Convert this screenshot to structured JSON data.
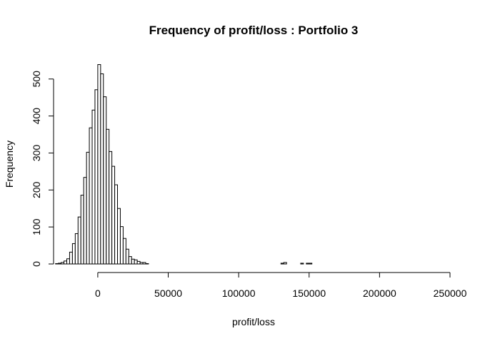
{
  "chart_data": {
    "type": "histogram",
    "title": "Frequency of profit/loss : Portfolio 3",
    "xlabel": "profit/loss",
    "ylabel": "Frequency",
    "bin_width": 2000,
    "xlim": [
      -40000,
      250000
    ],
    "ylim": [
      0,
      540
    ],
    "x_ticks": [
      0,
      50000,
      100000,
      150000,
      200000,
      250000
    ],
    "x_tick_labels": [
      "0",
      "50000",
      "100000",
      "150000",
      "200000",
      "250000"
    ],
    "y_ticks": [
      0,
      100,
      200,
      300,
      400,
      500
    ],
    "y_tick_labels": [
      "0",
      "100",
      "200",
      "300",
      "400",
      "500"
    ],
    "bins": [
      {
        "start": -30000,
        "count": 1
      },
      {
        "start": -28000,
        "count": 2
      },
      {
        "start": -26000,
        "count": 4
      },
      {
        "start": -24000,
        "count": 8
      },
      {
        "start": -22000,
        "count": 14
      },
      {
        "start": -20000,
        "count": 32
      },
      {
        "start": -18000,
        "count": 55
      },
      {
        "start": -16000,
        "count": 82
      },
      {
        "start": -14000,
        "count": 127
      },
      {
        "start": -12000,
        "count": 186
      },
      {
        "start": -10000,
        "count": 234
      },
      {
        "start": -8000,
        "count": 302
      },
      {
        "start": -6000,
        "count": 368
      },
      {
        "start": -4000,
        "count": 416
      },
      {
        "start": -2000,
        "count": 471
      },
      {
        "start": 0,
        "count": 539
      },
      {
        "start": 2000,
        "count": 514
      },
      {
        "start": 4000,
        "count": 452
      },
      {
        "start": 6000,
        "count": 364
      },
      {
        "start": 8000,
        "count": 304
      },
      {
        "start": 10000,
        "count": 264
      },
      {
        "start": 12000,
        "count": 214
      },
      {
        "start": 14000,
        "count": 150
      },
      {
        "start": 16000,
        "count": 101
      },
      {
        "start": 18000,
        "count": 69
      },
      {
        "start": 20000,
        "count": 40
      },
      {
        "start": 22000,
        "count": 20
      },
      {
        "start": 24000,
        "count": 13
      },
      {
        "start": 26000,
        "count": 11
      },
      {
        "start": 28000,
        "count": 7
      },
      {
        "start": 30000,
        "count": 4
      },
      {
        "start": 32000,
        "count": 4
      },
      {
        "start": 34000,
        "count": 1
      },
      {
        "start": 36000,
        "count": 0
      },
      {
        "start": 130000,
        "count": 2
      },
      {
        "start": 132000,
        "count": 4
      },
      {
        "start": 144000,
        "count": 2
      },
      {
        "start": 148000,
        "count": 2
      },
      {
        "start": 150000,
        "count": 2
      },
      {
        "start": 238000,
        "count": 0
      }
    ],
    "grid": false,
    "legend": "none",
    "colors": {
      "bar_fill": "#ffffff",
      "bar_stroke": "#000000"
    }
  }
}
